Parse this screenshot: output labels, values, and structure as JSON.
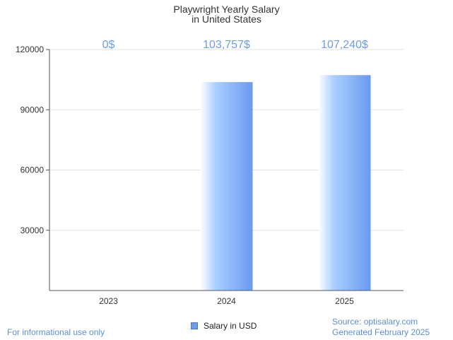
{
  "chart_data": {
    "type": "bar",
    "title": "Playwright Yearly Salary",
    "subtitle": "in United States",
    "categories": [
      "2023",
      "2024",
      "2025"
    ],
    "series": [
      {
        "name": "Salary in USD",
        "values": [
          0,
          103757,
          107240
        ]
      }
    ],
    "data_labels": [
      "0$",
      "103,757$",
      "107,240$"
    ],
    "yticks": [
      30000,
      60000,
      90000,
      120000
    ],
    "ytick_labels": [
      "30000",
      "60000",
      "90000",
      "120000"
    ],
    "ylim": [
      0,
      120000
    ],
    "xlabel": "",
    "ylabel": "",
    "grid": true,
    "legend_position": "bottom-center",
    "colors": {
      "bar_light": "#ffffff",
      "bar_mid": "#a9ceff",
      "bar_dark": "#6a9af0",
      "data_label": "#6b9ee6",
      "grid": "#e3e3e3",
      "axis": "#555555"
    }
  },
  "footer": {
    "disclaimer": "For informational use only",
    "source": "Source: optisalary.com",
    "generated": "Generated February 2025"
  }
}
